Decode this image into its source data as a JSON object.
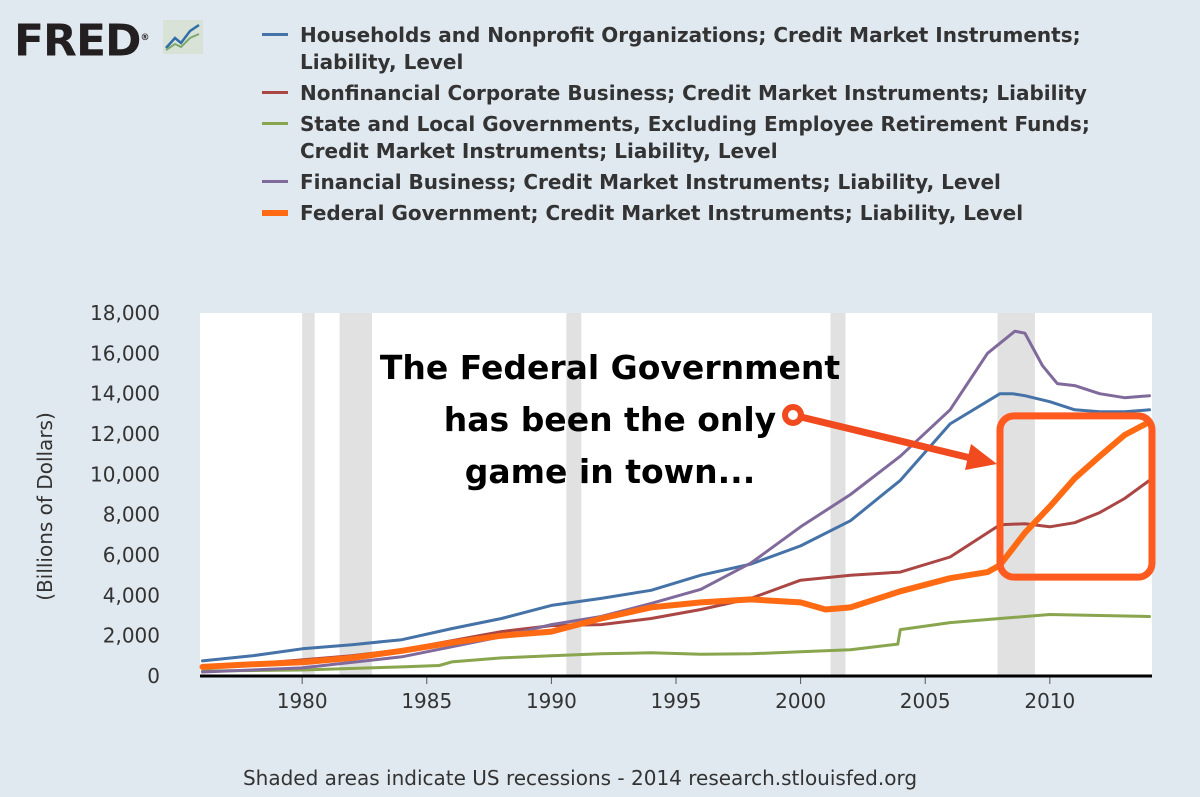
{
  "logo": {
    "text": "FRED",
    "mark": "®",
    "icon": "line-graph-icon"
  },
  "footer": "Shaded areas indicate US recessions - 2014 research.stlouisfed.org",
  "annotation": [
    "The Federal Government",
    "has been the only",
    "game in town..."
  ],
  "colors": {
    "background": "#e1e9f0",
    "plot_bg": "#ffffff",
    "recession": "#e1e1e1",
    "highlight": "#ff5a1f",
    "arrow": "#f04a1e"
  },
  "chart_data": {
    "type": "line",
    "ylabel": "(Billions of Dollars)",
    "xlabel": "",
    "xlim": [
      1975.9,
      2014.1
    ],
    "ylim": [
      0,
      18000
    ],
    "yticks": [
      0,
      2000,
      4000,
      6000,
      8000,
      10000,
      12000,
      14000,
      16000,
      18000
    ],
    "ytick_labels": [
      "0",
      "2,000",
      "4,000",
      "6,000",
      "8,000",
      "10,000",
      "12,000",
      "14,000",
      "16,000",
      "18,000"
    ],
    "xticks": [
      1980,
      1985,
      1990,
      1995,
      2000,
      2005,
      2010
    ],
    "xtick_labels": [
      "1980",
      "1985",
      "1990",
      "1995",
      "2000",
      "2005",
      "2010"
    ],
    "grid": false,
    "legend_position": "top",
    "recessions": [
      [
        1980.0,
        1980.5
      ],
      [
        1981.5,
        1982.8
      ],
      [
        1990.6,
        1991.2
      ],
      [
        2001.2,
        2001.8
      ],
      [
        2007.9,
        2009.4
      ]
    ],
    "series": [
      {
        "name": "Households and Nonprofit Organizations; Credit Market Instruments; Liability, Level",
        "color": "#4572a7",
        "width": 3,
        "x": [
          1976,
          1978,
          1980,
          1982,
          1984,
          1986,
          1988,
          1990,
          1992,
          1994,
          1996,
          1998,
          2000,
          2002,
          2004,
          2006,
          2008,
          2008.5,
          2009,
          2010,
          2011,
          2012,
          2013,
          2014
        ],
        "y": [
          750,
          1000,
          1350,
          1550,
          1800,
          2350,
          2850,
          3500,
          3850,
          4250,
          5000,
          5550,
          6450,
          7700,
          9700,
          12500,
          14000,
          14000,
          13900,
          13600,
          13200,
          13100,
          13100,
          13200
        ]
      },
      {
        "name": "Nonfinancial Corporate Business; Credit Market Instruments; Liability",
        "color": "#aa4643",
        "width": 3,
        "x": [
          1976,
          1978,
          1980,
          1982,
          1984,
          1986,
          1988,
          1990,
          1992,
          1994,
          1996,
          1998,
          2000,
          2002,
          2004,
          2006,
          2008,
          2009,
          2010,
          2011,
          2012,
          2013,
          2014
        ],
        "y": [
          500,
          600,
          800,
          1000,
          1300,
          1750,
          2200,
          2500,
          2550,
          2850,
          3300,
          3850,
          4750,
          5000,
          5150,
          5900,
          7500,
          7550,
          7400,
          7600,
          8100,
          8800,
          9700
        ]
      },
      {
        "name": "State and Local Governments, Excluding Employee Retirement Funds; Credit Market Instruments; Liability, Level",
        "color": "#89a54e",
        "width": 3,
        "x": [
          1976,
          1980,
          1984,
          1985.5,
          1986,
          1988,
          1990,
          1992,
          1994,
          1996,
          1998,
          2000,
          2002,
          2003.9,
          2004,
          2006,
          2008,
          2010,
          2012,
          2014
        ],
        "y": [
          250,
          300,
          450,
          520,
          700,
          900,
          1000,
          1100,
          1150,
          1080,
          1100,
          1200,
          1300,
          1580,
          2300,
          2650,
          2850,
          3050,
          3000,
          2950
        ]
      },
      {
        "name": "Financial Business; Credit Market Instruments; Liability, Level",
        "color": "#80699b",
        "width": 3,
        "x": [
          1976,
          1980,
          1984,
          1986,
          1988,
          1990,
          1992,
          1994,
          1996,
          1998,
          2000,
          2002,
          2004,
          2006,
          2007.5,
          2008.6,
          2009,
          2009.7,
          2010.3,
          2011,
          2012,
          2013,
          2014
        ],
        "y": [
          200,
          400,
          950,
          1450,
          1950,
          2550,
          2950,
          3600,
          4300,
          5600,
          7400,
          9000,
          10900,
          13200,
          16000,
          17100,
          17000,
          15400,
          14500,
          14400,
          14000,
          13800,
          13900
        ]
      },
      {
        "name": "Federal Government; Credit Market Instruments; Liability, Level",
        "color": "#ff6a13",
        "width": 6,
        "x": [
          1976,
          1978,
          1980,
          1982,
          1984,
          1986,
          1988,
          1990,
          1992,
          1994,
          1996,
          1998,
          2000,
          2001,
          2002,
          2004,
          2006,
          2007.5,
          2008,
          2009,
          2010,
          2011,
          2012,
          2013,
          2014
        ],
        "y": [
          450,
          580,
          680,
          900,
          1250,
          1650,
          2000,
          2200,
          2850,
          3400,
          3650,
          3800,
          3650,
          3300,
          3400,
          4200,
          4850,
          5150,
          5500,
          7100,
          8400,
          9800,
          10900,
          11950,
          12600
        ]
      }
    ]
  }
}
